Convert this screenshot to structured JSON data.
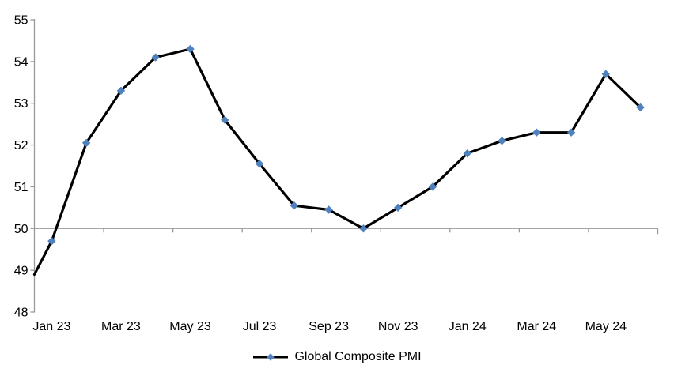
{
  "chart_data": {
    "type": "line",
    "title": "",
    "legend": {
      "label": "Global Composite PMI",
      "position": "bottom-center"
    },
    "categories": [
      "Jan 23",
      "Feb 23",
      "Mar 23",
      "Apr 23",
      "May 23",
      "Jun 23",
      "Jul 23",
      "Aug 23",
      "Sep 23",
      "Oct 23",
      "Nov 23",
      "Dec 23",
      "Jan 24",
      "Feb 24",
      "Mar 24",
      "Apr 24",
      "May 24",
      "Jun 24"
    ],
    "series": [
      {
        "name": "Global Composite PMI",
        "values": [
          49.7,
          52.05,
          53.3,
          54.1,
          54.3,
          52.6,
          51.55,
          50.55,
          50.45,
          50.0,
          50.5,
          51.0,
          51.8,
          52.1,
          52.3,
          52.3,
          53.7,
          52.9
        ],
        "line_enters_from_left_axis_at": 48.9,
        "marker": "diamond"
      }
    ],
    "x_tick_labels": [
      "Jan 23",
      "Mar 23",
      "May 23",
      "Jul 23",
      "Sep 23",
      "Nov 23",
      "Jan 24",
      "Mar 24",
      "May 24"
    ],
    "y_ticks": [
      48,
      49,
      50,
      51,
      52,
      53,
      54,
      55
    ],
    "ylim": [
      48,
      55
    ],
    "category_axis_crosses_at": 50,
    "grid": "off",
    "colors": {
      "series_line": "#000000",
      "marker_fill": "#4f81bd",
      "axis_line": "#999999",
      "tick_text": "#000000",
      "background": "#ffffff"
    }
  }
}
